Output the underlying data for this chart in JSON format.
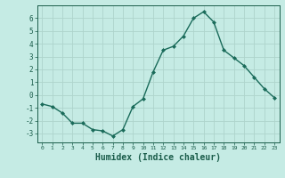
{
  "x": [
    0,
    1,
    2,
    3,
    4,
    5,
    6,
    7,
    8,
    9,
    10,
    11,
    12,
    13,
    14,
    15,
    16,
    17,
    18,
    19,
    20,
    21,
    22,
    23
  ],
  "y": [
    -0.7,
    -0.9,
    -1.4,
    -2.2,
    -2.2,
    -2.7,
    -2.8,
    -3.2,
    -2.7,
    -0.9,
    -0.3,
    1.8,
    3.5,
    3.8,
    4.6,
    6.0,
    6.5,
    5.7,
    3.5,
    2.9,
    2.3,
    1.4,
    0.5,
    -0.2
  ],
  "line_color": "#1a6b5a",
  "marker": "D",
  "marker_size": 2,
  "bg_color": "#c5ebe4",
  "grid_color": "#aed4cc",
  "axis_label_color": "#1a5c4a",
  "tick_color": "#1a5c4a",
  "xlabel": "Humidex (Indice chaleur)",
  "xlabel_fontsize": 7,
  "xlim": [
    -0.5,
    23.5
  ],
  "ylim": [
    -3.7,
    7.0
  ],
  "yticks": [
    -3,
    -2,
    -1,
    0,
    1,
    2,
    3,
    4,
    5,
    6
  ],
  "xticks": [
    0,
    1,
    2,
    3,
    4,
    5,
    6,
    7,
    8,
    9,
    10,
    11,
    12,
    13,
    14,
    15,
    16,
    17,
    18,
    19,
    20,
    21,
    22,
    23
  ],
  "xtick_labels": [
    "0",
    "1",
    "2",
    "3",
    "4",
    "5",
    "6",
    "7",
    "8",
    "9",
    "10",
    "11",
    "12",
    "13",
    "14",
    "15",
    "16",
    "17",
    "18",
    "19",
    "20",
    "21",
    "22",
    "23"
  ]
}
